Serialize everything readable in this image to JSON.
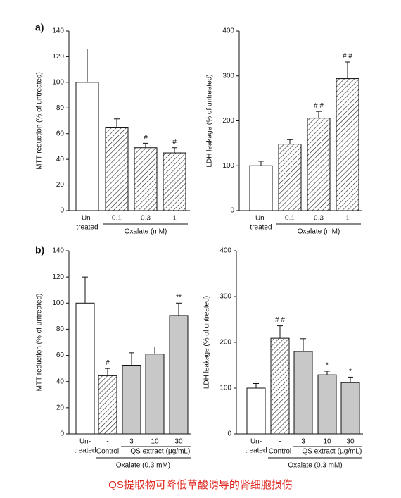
{
  "chart_data": [
    {
      "type": "bar",
      "panel": "a)",
      "ylabel": "MTT reduction (% of untreated)",
      "categories": [
        [
          "Un-",
          "treated"
        ],
        [
          "0.1"
        ],
        [
          "0.3"
        ],
        [
          "1"
        ]
      ],
      "values": [
        100,
        64.5,
        49,
        45
      ],
      "errors": [
        26,
        7,
        3.5,
        4
      ],
      "annotations": [
        null,
        null,
        "#",
        "#"
      ],
      "fills": [
        "white",
        "hatch",
        "hatch",
        "hatch"
      ],
      "group_labels": [
        "Oxalate (mM)"
      ],
      "ylim": [
        0,
        140
      ],
      "yticks": [
        0,
        20,
        40,
        60,
        80,
        100,
        120,
        140
      ]
    },
    {
      "type": "bar",
      "ylabel": "LDH leakage (% of untreated)",
      "categories": [
        [
          "Un-",
          "treated"
        ],
        [
          "0.1"
        ],
        [
          "0.3"
        ],
        [
          "1"
        ]
      ],
      "values": [
        100,
        148,
        206,
        294
      ],
      "errors": [
        10,
        10,
        15,
        37
      ],
      "annotations": [
        null,
        null,
        "# #",
        "# #"
      ],
      "fills": [
        "white",
        "hatch",
        "hatch",
        "hatch"
      ],
      "group_labels": [
        "Oxalate (mM)"
      ],
      "ylim": [
        0,
        400
      ],
      "yticks": [
        0,
        100,
        200,
        300,
        400
      ]
    },
    {
      "type": "bar",
      "panel": "b)",
      "ylabel": "MTT reduction (% of untreated)",
      "categories": [
        [
          "Un-",
          "treated"
        ],
        [
          "-"
        ],
        [
          "3"
        ],
        [
          "10"
        ],
        [
          "30"
        ]
      ],
      "values": [
        100,
        44.5,
        52.5,
        61,
        90.5
      ],
      "errors": [
        20,
        5.5,
        9.5,
        5.5,
        9.5
      ],
      "annotations": [
        null,
        "#",
        null,
        null,
        "**"
      ],
      "fills": [
        "white",
        "hatch",
        "gray",
        "gray",
        "gray"
      ],
      "group_labels": [
        "Control",
        "QS extract",
        "(µg/mL)",
        "Oxalate (0.3 mM)"
      ],
      "ylim": [
        0,
        140
      ],
      "yticks": [
        0,
        20,
        40,
        60,
        80,
        100,
        120,
        140
      ]
    },
    {
      "type": "bar",
      "ylabel": "LDH leakage (% of untreated)",
      "categories": [
        [
          "Un-",
          "treated"
        ],
        [
          "-"
        ],
        [
          "3"
        ],
        [
          "10"
        ],
        [
          "30"
        ]
      ],
      "values": [
        100,
        209,
        180,
        129,
        112
      ],
      "errors": [
        10,
        27,
        28,
        8,
        12
      ],
      "annotations": [
        null,
        "# #",
        null,
        "*",
        "*"
      ],
      "fills": [
        "white",
        "hatch",
        "gray",
        "gray",
        "gray"
      ],
      "group_labels": [
        "Control",
        "QS extract",
        "(µg/mL)",
        "Oxalate (0.3 mM)"
      ],
      "ylim": [
        0,
        400
      ],
      "yticks": [
        0,
        100,
        200,
        300,
        400
      ]
    }
  ],
  "caption": "QS提取物可降低草酸诱导的肾细胞损伤"
}
